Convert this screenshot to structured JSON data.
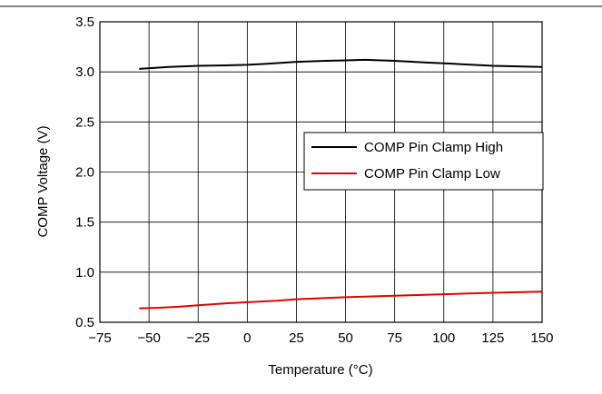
{
  "chart_data": {
    "type": "line",
    "title": "",
    "xlabel": "Temperature (°C)",
    "ylabel": "COMP Voltage (V)",
    "xlim": [
      -75,
      150
    ],
    "ylim": [
      0.5,
      3.5
    ],
    "x_ticks": [
      -75,
      -50,
      -25,
      0,
      25,
      50,
      75,
      100,
      125,
      150
    ],
    "x_tick_labels": [
      "−75",
      "−50",
      "−25",
      "0",
      "25",
      "50",
      "75",
      "100",
      "125",
      "150"
    ],
    "y_ticks": [
      0.5,
      1.0,
      1.5,
      2.0,
      2.5,
      3.0,
      3.5
    ],
    "y_tick_labels": [
      "0.5",
      "1.0",
      "1.5",
      "2.0",
      "2.5",
      "3.0",
      "3.5"
    ],
    "grid": true,
    "legend_position": "right",
    "series": [
      {
        "name": "COMP Pin Clamp High",
        "color": "#000000",
        "x": [
          -55,
          -40,
          -25,
          -10,
          0,
          10,
          25,
          40,
          50,
          60,
          75,
          90,
          105,
          125,
          150
        ],
        "y": [
          3.03,
          3.05,
          3.06,
          3.065,
          3.07,
          3.08,
          3.1,
          3.11,
          3.115,
          3.12,
          3.11,
          3.095,
          3.08,
          3.06,
          3.05
        ]
      },
      {
        "name": "COMP Pin Clamp Low",
        "color": "#e60000",
        "x": [
          -55,
          -45,
          -35,
          -25,
          -10,
          0,
          15,
          25,
          50,
          75,
          100,
          125,
          150
        ],
        "y": [
          0.64,
          0.645,
          0.655,
          0.67,
          0.69,
          0.7,
          0.715,
          0.73,
          0.75,
          0.765,
          0.78,
          0.795,
          0.805
        ]
      }
    ]
  }
}
